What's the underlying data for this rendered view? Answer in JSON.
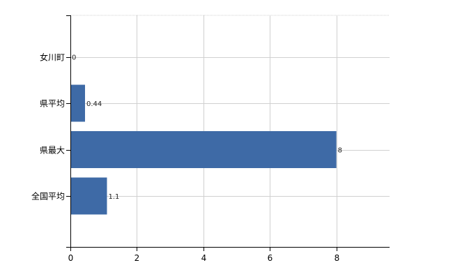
{
  "chart_data": {
    "type": "bar",
    "orientation": "horizontal",
    "categories": [
      "女川町",
      "県平均",
      "県最大",
      "全国平均"
    ],
    "values": [
      0,
      0.44,
      8,
      1.1
    ],
    "data_labels": [
      "0",
      "0.44",
      "8",
      "1.1"
    ],
    "xlim": [
      0,
      9.6
    ],
    "x_ticks": [
      0,
      2,
      4,
      6,
      8
    ],
    "x_tick_labels": [
      "0",
      "2",
      "4",
      "6",
      "8"
    ],
    "grid": true,
    "legend": "none",
    "bar_color": "#3e6aa6",
    "grid_color": "#d0d0d0",
    "axis_color": "#000000"
  }
}
